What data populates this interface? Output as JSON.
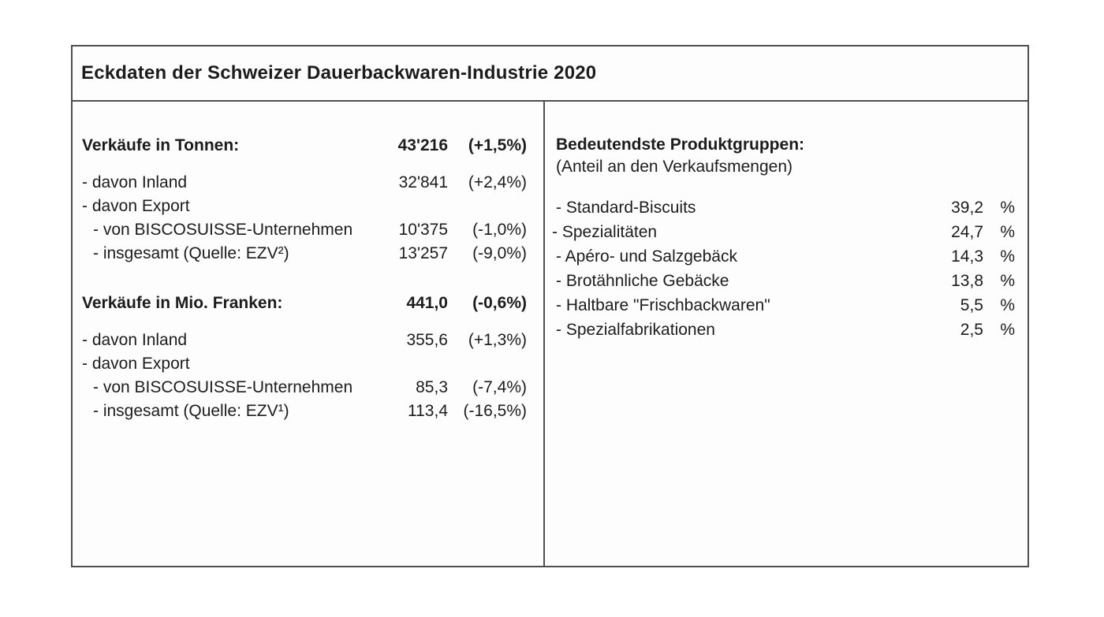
{
  "title": "Eckdaten der Schweizer Dauerbackwaren-Industrie 2020",
  "left": {
    "sections": [
      {
        "header": {
          "label": "Verkäufe in Tonnen:",
          "value": "43'216",
          "change": "(+1,5%)"
        },
        "rows": [
          {
            "label": "- davon Inland",
            "value": "32'841",
            "change": "(+2,4%)"
          },
          {
            "label": "- davon Export",
            "value": "",
            "change": ""
          },
          {
            "label": "- von BISCOSUISSE-Unternehmen",
            "value": "10'375",
            "change": "(-1,0%)"
          },
          {
            "label": "- insgesamt (Quelle: EZV²)",
            "value": "13'257",
            "change": "(-9,0%)"
          }
        ]
      },
      {
        "header": {
          "label": "Verkäufe in Mio. Franken:",
          "value": "441,0",
          "change": "(-0,6%)"
        },
        "rows": [
          {
            "label": "- davon Inland",
            "value": "355,6",
            "change": "(+1,3%)"
          },
          {
            "label": "- davon Export",
            "value": "",
            "change": ""
          },
          {
            "label": "- von BISCOSUISSE-Unternehmen",
            "value": "85,3",
            "change": "(-7,4%)"
          },
          {
            "label": "- insgesamt (Quelle: EZV¹)",
            "value": "113,4",
            "change": "(-16,5%)"
          }
        ]
      }
    ]
  },
  "right": {
    "header": "Bedeutendste Produktgruppen:",
    "subheader": "(Anteil an den Verkaufsmengen)",
    "unit": "%",
    "rows": [
      {
        "label": "- Standard-Biscuits",
        "value": "39,2"
      },
      {
        "label": "- Spezialitäten",
        "value": "24,7"
      },
      {
        "label": "- Apéro- und Salzgebäck",
        "value": "14,3"
      },
      {
        "label": "- Brotähnliche Gebäcke",
        "value": "13,8"
      },
      {
        "label": "- Haltbare \"Frischbackwaren\"",
        "value": "5,5"
      },
      {
        "label": "- Spezialfabrikationen",
        "value": "2,5"
      }
    ]
  }
}
